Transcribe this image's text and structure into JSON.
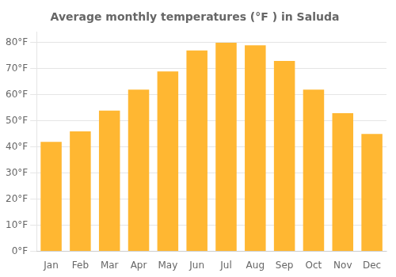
{
  "chart_data": {
    "type": "bar",
    "title": "Average monthly temperatures (°F ) in Saluda",
    "categories": [
      "Jan",
      "Feb",
      "Mar",
      "Apr",
      "May",
      "Jun",
      "Jul",
      "Aug",
      "Sep",
      "Oct",
      "Nov",
      "Dec"
    ],
    "values": [
      42,
      46,
      54,
      62,
      69,
      77,
      80,
      79,
      73,
      62,
      53,
      45
    ],
    "color": "#FFB732",
    "ylim": [
      0,
      84
    ],
    "yticks": [
      {
        "value": 0,
        "label": "0°F"
      },
      {
        "value": 10,
        "label": "10°F"
      },
      {
        "value": 20,
        "label": "20°F"
      },
      {
        "value": 30,
        "label": "30°F"
      },
      {
        "value": 40,
        "label": "40°F"
      },
      {
        "value": 50,
        "label": "50°F"
      },
      {
        "value": 60,
        "label": "60°F"
      },
      {
        "value": 70,
        "label": "70°F"
      },
      {
        "value": 80,
        "label": "80°F"
      }
    ],
    "grid": true
  }
}
